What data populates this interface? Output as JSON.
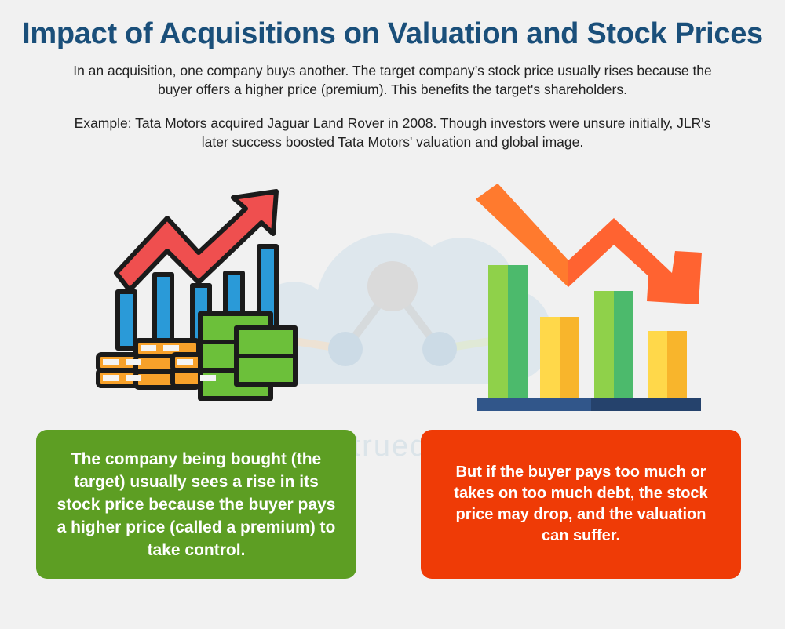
{
  "header": {
    "title": "Impact of Acquisitions on Valuation and Stock Prices"
  },
  "intro": {
    "text": "In an acquisition, one company buys another. The target company’s stock price usually rises because the buyer offers a higher price (premium). This benefits the target's shareholders.",
    "example": "Example: Tata Motors acquired Jaguar Land Rover in 2008. Though investors were unsure initially, JLR's later success boosted Tata Motors' valuation and global image."
  },
  "watermark": {
    "text": "www.truedata.in"
  },
  "cards": {
    "rise": "The company being bought (the target) usually sees a rise in its stock price because the buyer pays a higher price (called a premium) to take control.",
    "drop": "But if the buyer pays too much or takes on too much debt, the stock price may drop, and the valuation can suffer."
  },
  "colors": {
    "title": "#1a4f7a",
    "green_card": "#5d9e23",
    "red_card": "#ef3b06"
  }
}
